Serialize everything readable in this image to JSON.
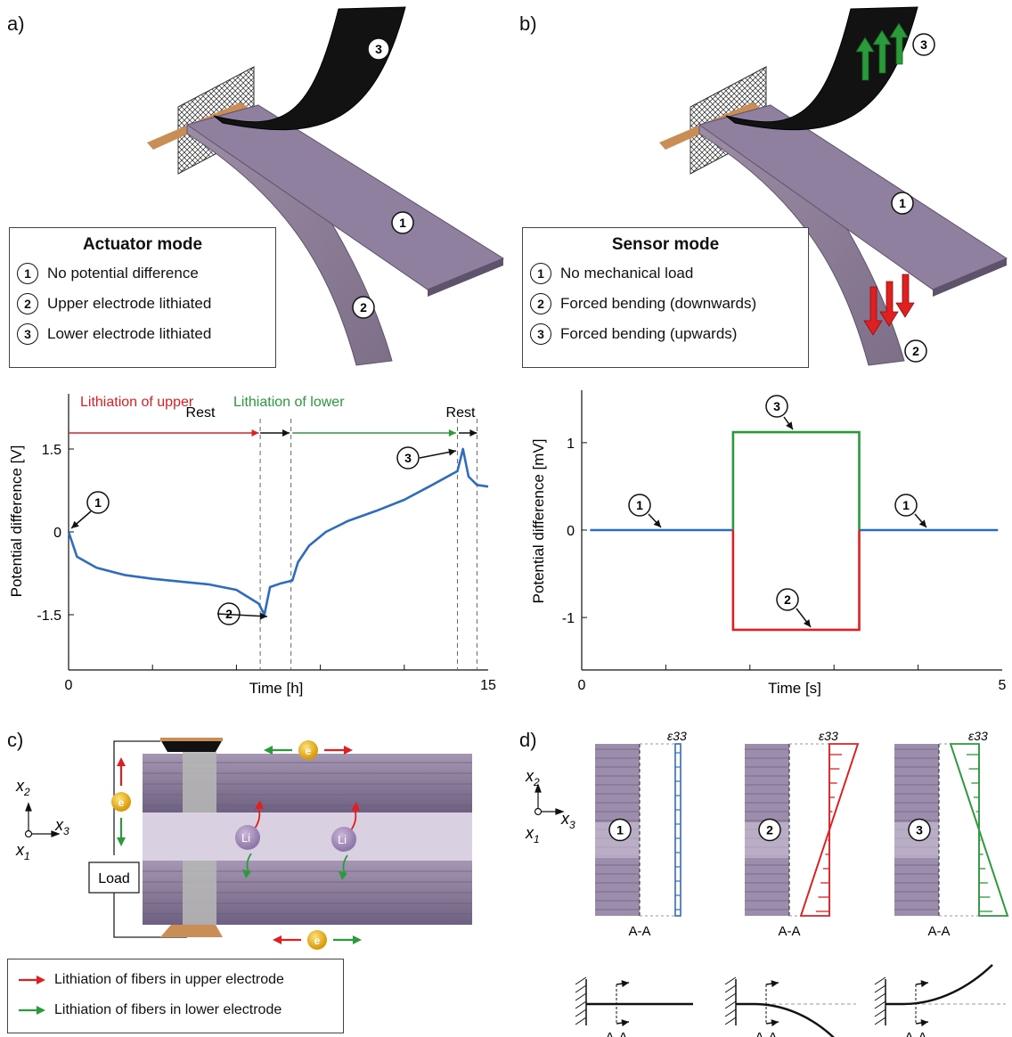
{
  "panels": {
    "a": "a)",
    "b": "b)",
    "c": "c)",
    "d": "d)"
  },
  "actuator_legend": {
    "title": "Actuator mode",
    "items": [
      {
        "num": "1",
        "label": "No potential difference"
      },
      {
        "num": "2",
        "label": "Upper electrode lithiated"
      },
      {
        "num": "3",
        "label": "Lower electrode lithiated"
      }
    ]
  },
  "sensor_legend": {
    "title": "Sensor mode",
    "items": [
      {
        "num": "1",
        "label": "No mechanical load"
      },
      {
        "num": "2",
        "label": "Forced bending (downwards)"
      },
      {
        "num": "3",
        "label": "Forced bending (upwards)"
      }
    ]
  },
  "chart_data": [
    {
      "type": "line",
      "title": "",
      "xlabel": "Time [h]",
      "ylabel": "Potential difference [V]",
      "xlim": [
        0,
        15
      ],
      "ylim": [
        -2.5,
        2.5
      ],
      "xticks": [
        "0",
        "15"
      ],
      "yticks": [
        "1.5",
        "0",
        "-1.5"
      ],
      "annotations": {
        "lith_upper": "Lithiation of upper",
        "rest1": "Rest",
        "lith_lower": "Lithiation of lower",
        "rest2": "Rest",
        "markers": [
          "1",
          "2",
          "3"
        ]
      },
      "series": [
        {
          "color": "#2e6cc0",
          "x": [
            0,
            0.3,
            1,
            2,
            3,
            4,
            5,
            6,
            6.8,
            7.0,
            7.2,
            7.6,
            8.0,
            8.2,
            8.6,
            9.2,
            10,
            11,
            12,
            13,
            13.9,
            14.1,
            14.3,
            14.6,
            15.0
          ],
          "y": [
            0,
            -0.45,
            -0.65,
            -0.78,
            -0.85,
            -0.9,
            -0.95,
            -1.05,
            -1.3,
            -1.5,
            -1.0,
            -0.93,
            -0.88,
            -0.55,
            -0.25,
            0.0,
            0.2,
            0.38,
            0.58,
            0.85,
            1.1,
            1.5,
            1.0,
            0.85,
            0.82
          ]
        }
      ],
      "vlines": [
        6.85,
        7.95,
        13.9,
        14.6
      ]
    },
    {
      "type": "line",
      "title": "",
      "xlabel": "Time [s]",
      "ylabel": "Potential difference [mV]",
      "xlim": [
        0,
        5
      ],
      "ylim": [
        -1.6,
        1.6
      ],
      "xticks": [
        "0",
        "5"
      ],
      "yticks": [
        "1",
        "0",
        "-1"
      ],
      "series": [
        {
          "color": "#2e6cc0",
          "x": [
            0.1,
            1.8
          ],
          "y": [
            0,
            0
          ]
        },
        {
          "color": "#2e6cc0",
          "x": [
            3.3,
            4.95
          ],
          "y": [
            0,
            0
          ]
        },
        {
          "color": "#2a9a3a",
          "x": [
            1.8,
            1.8,
            3.3,
            3.3
          ],
          "y": [
            0,
            1.12,
            1.12,
            0
          ]
        },
        {
          "color": "#e02020",
          "x": [
            1.8,
            1.8,
            3.3,
            3.3
          ],
          "y": [
            0,
            -1.14,
            -1.14,
            0
          ]
        }
      ],
      "annotations": {
        "markers": [
          "1",
          "1",
          "2",
          "3"
        ]
      }
    }
  ],
  "panel_c": {
    "axis": {
      "x2": "x",
      "x2sub": "2",
      "x3": "x",
      "x3sub": "3",
      "x1": "x",
      "x1sub": "1"
    },
    "load": "Load",
    "electron": "e",
    "li": "Li",
    "legend": [
      {
        "color": "#e02020",
        "label": "Lithiation of fibers in upper electrode"
      },
      {
        "color": "#2a9a3a",
        "label": "Lithiation of fibers in lower electrode"
      }
    ]
  },
  "panel_d": {
    "strain_label": "ε33",
    "section_label": "A-A",
    "items": [
      "1",
      "2",
      "3"
    ],
    "colors": {
      "1": "#2e6cc0",
      "2": "#e02020",
      "3": "#2a9a3a"
    }
  }
}
